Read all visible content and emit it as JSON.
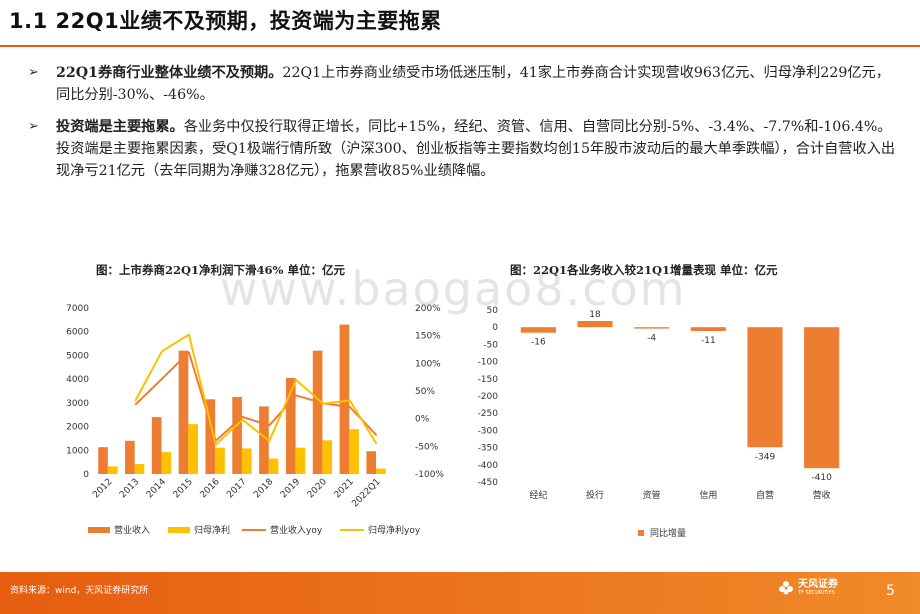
{
  "header": {
    "title": "1.1 22Q1业绩不及预期，投资端为主要拖累"
  },
  "bullets": [
    {
      "lead": "22Q1券商行业整体业绩不及预期。",
      "text": "22Q1上市券商业绩受市场低迷压制，41家上市券商合计实现营收963亿元、归母净利229亿元，同比分别-30%、-46%。"
    },
    {
      "lead": "投资端是主要拖累。",
      "text": "各业务中仅投行取得正增长，同比+15%，经纪、资管、信用、自营同比分别-5%、-3.4%、-7.7%和-106.4%。投资端是主要拖累因素，受Q1极端行情所致（沪深300、创业板指等主要指数均创15年股市波动后的最大单季跌幅），合计自营收入出现净亏21亿元（去年同期为净赚328亿元），拖累营收85%业绩降幅。"
    }
  ],
  "watermark": "www.baogao8.com",
  "charts": {
    "left_title": "图：上市券商22Q1净利润下滑46%    单位：亿元",
    "right_title": "图：22Q1各业务收入较21Q1增量表现    单位：亿元"
  },
  "chart_data": [
    {
      "type": "bar",
      "combo": "bar+line",
      "categories": [
        "2012",
        "2013",
        "2014",
        "2015",
        "2016",
        "2017",
        "2018",
        "2019",
        "2020",
        "2021",
        "2022Q1"
      ],
      "series": [
        {
          "name": "营业收入",
          "kind": "bar",
          "axis": "left",
          "color": "#ed7d31",
          "values": [
            1130,
            1400,
            2400,
            5200,
            3150,
            3250,
            2850,
            4050,
            5200,
            6300,
            960
          ]
        },
        {
          "name": "归母净利",
          "kind": "bar",
          "axis": "left",
          "color": "#ffc000",
          "values": [
            320,
            420,
            920,
            2100,
            1110,
            1080,
            650,
            1110,
            1420,
            1890,
            229
          ]
        },
        {
          "name": "营业收入yoy",
          "kind": "line",
          "axis": "right",
          "color": "#ed7d31",
          "values": [
            null,
            25,
            72,
            120,
            -40,
            3,
            -12,
            42,
            28,
            21,
            -30
          ]
        },
        {
          "name": "归母净利yoy",
          "kind": "line",
          "axis": "right",
          "color": "#ffc000",
          "values": [
            null,
            32,
            122,
            152,
            -47,
            -2,
            -40,
            70,
            27,
            33,
            -46
          ]
        }
      ],
      "y_left": {
        "min": 0,
        "max": 7000,
        "ticks": [
          "0",
          "1000",
          "2000",
          "3000",
          "4000",
          "5000",
          "6000",
          "7000"
        ]
      },
      "y_right": {
        "min": -100,
        "max": 200,
        "ticks": [
          "-100%",
          "-50%",
          "0%",
          "50%",
          "100%",
          "150%",
          "200%"
        ]
      },
      "legend_position": "bottom",
      "grid": false
    },
    {
      "type": "bar",
      "categories": [
        "经纪",
        "投行",
        "资管",
        "信用",
        "自营",
        "营收"
      ],
      "series": [
        {
          "name": "同比增量",
          "color": "#ed7d31",
          "values": [
            -16,
            18,
            -4,
            -11,
            -349,
            -410
          ]
        }
      ],
      "y": {
        "min": -450,
        "max": 50,
        "ticks": [
          "50",
          "0",
          "-50",
          "-100",
          "-150",
          "-200",
          "-250",
          "-300",
          "-350",
          "-400",
          "-450"
        ]
      },
      "legend_position": "bottom",
      "grid": false
    }
  ],
  "footer": {
    "source": "资料来源：wind，天风证券研究所",
    "logo_cn": "天风证券",
    "logo_en": "TF SECURITIES",
    "page": "5"
  }
}
